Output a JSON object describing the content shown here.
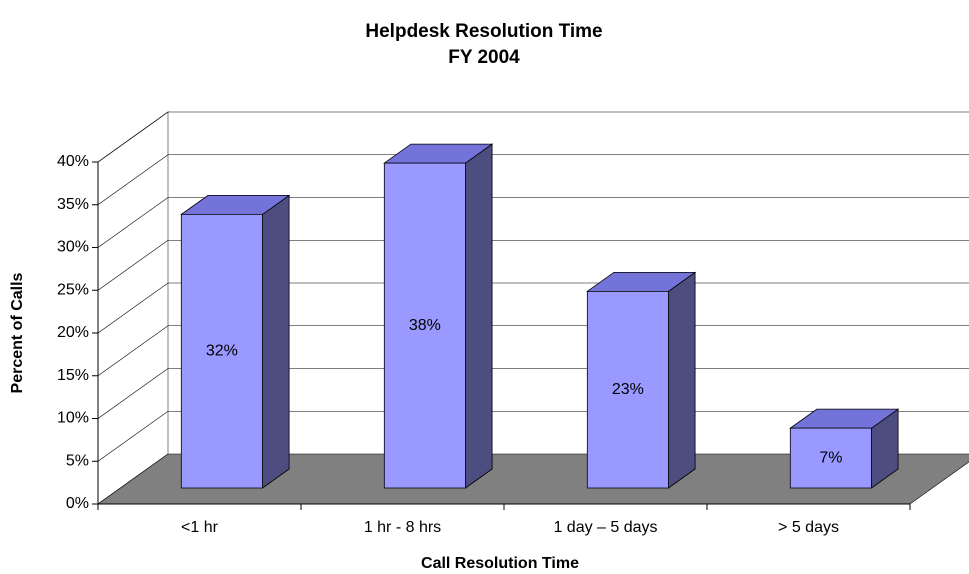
{
  "chart_data": {
    "type": "bar3d",
    "title": "Helpdesk Resolution Time",
    "subtitle": "FY 2004",
    "x_label": "Call Resolution Time",
    "y_label": "Percent of Calls",
    "categories": [
      "<1 hr",
      "1 hr - 8 hrs",
      "1 day – 5 days",
      "> 5 days"
    ],
    "values": [
      32,
      38,
      23,
      7
    ],
    "value_labels": [
      "32%",
      "38%",
      "23%",
      "7%"
    ],
    "color": "#9999ff",
    "ylim": [
      0,
      40
    ],
    "yticks": [
      {
        "value": 0,
        "label": "0%"
      },
      {
        "value": 5,
        "label": "5%"
      },
      {
        "value": 10,
        "label": "10%"
      },
      {
        "value": 15,
        "label": "15%"
      },
      {
        "value": 20,
        "label": "20%"
      },
      {
        "value": 25,
        "label": "25%"
      },
      {
        "value": 30,
        "label": "30%"
      },
      {
        "value": 35,
        "label": "35%"
      },
      {
        "value": 40,
        "label": "40%"
      }
    ],
    "grid": true
  }
}
